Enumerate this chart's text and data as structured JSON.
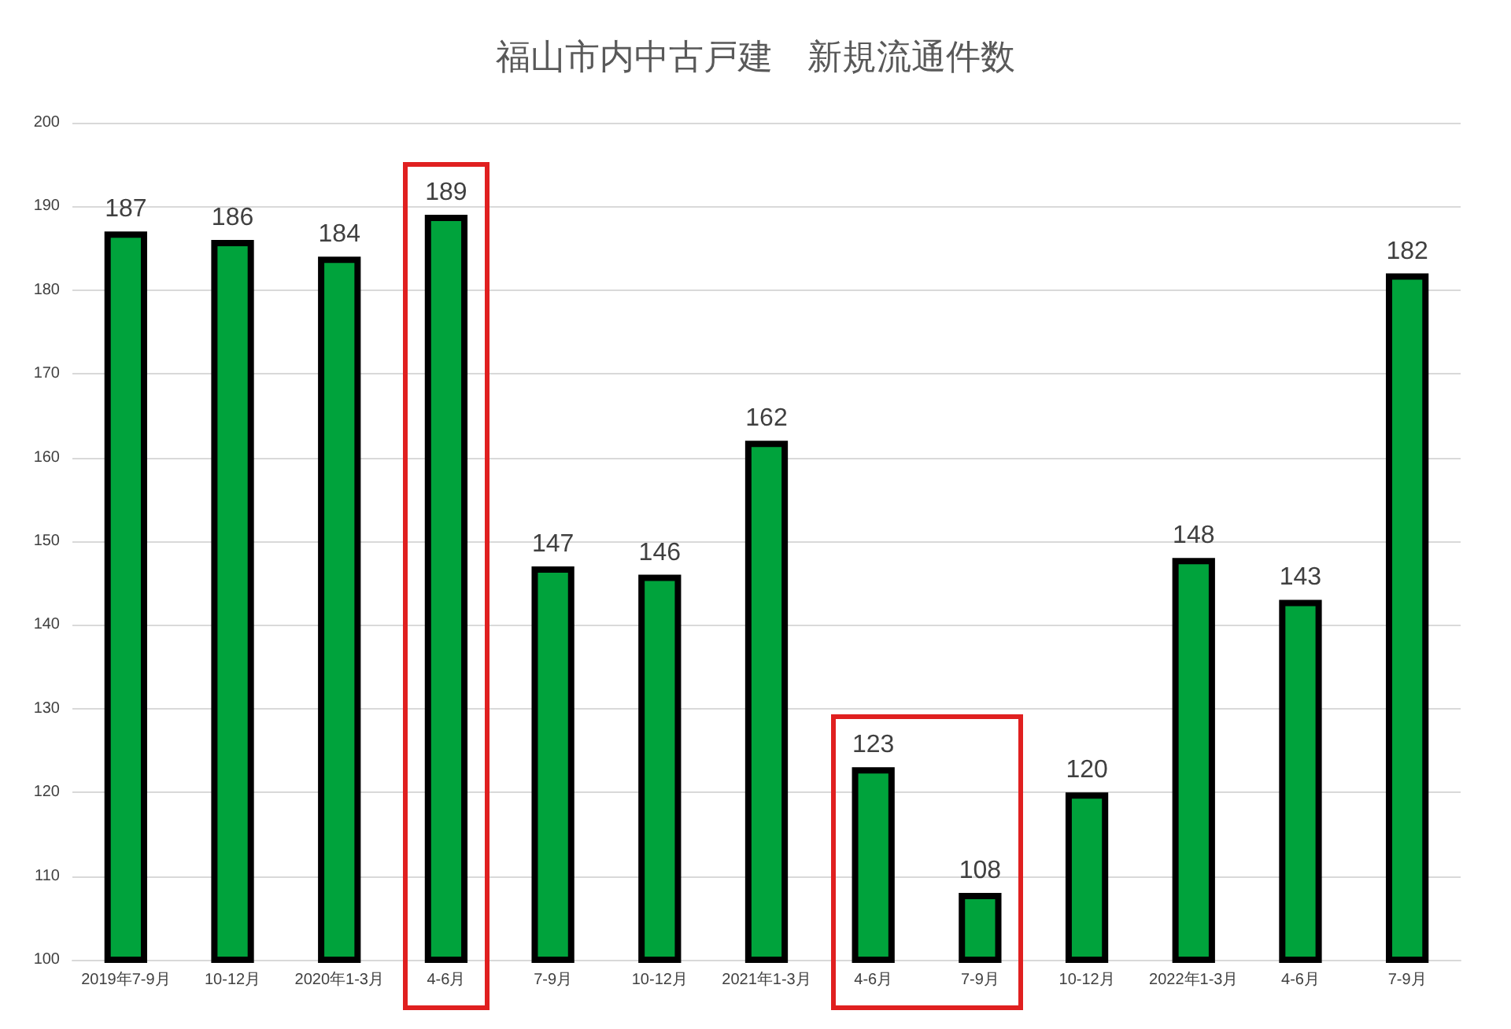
{
  "chart_data": {
    "type": "bar",
    "title": "福山市内中古戸建　新規流通件数",
    "categories": [
      "2019年7-9月",
      "10-12月",
      "2020年1-3月",
      "4-6月",
      "7-9月",
      "10-12月",
      "2021年1-3月",
      "4-6月",
      "7-9月",
      "10-12月",
      "2022年1-3月",
      "4-6月",
      "7-9月"
    ],
    "values": [
      187,
      186,
      184,
      189,
      147,
      146,
      162,
      123,
      108,
      120,
      148,
      143,
      182
    ],
    "color": "#00a33c",
    "data_labels": true,
    "ylim": [
      100,
      200
    ],
    "yticks": [
      100,
      110,
      120,
      130,
      140,
      150,
      160,
      170,
      180,
      190,
      200
    ],
    "grid": "y"
  }
}
